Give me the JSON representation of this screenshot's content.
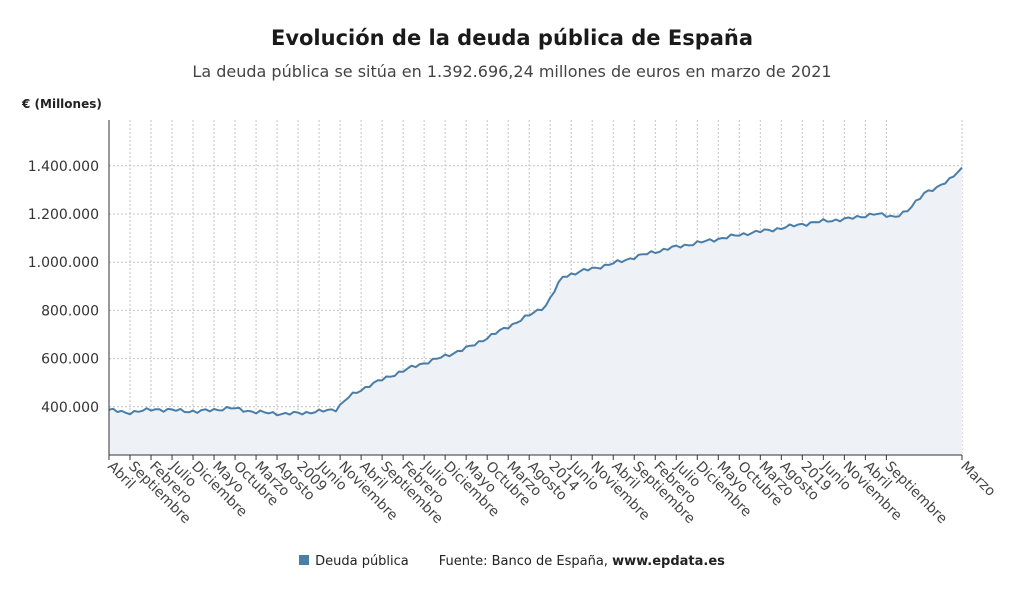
{
  "chart_data": {
    "type": "area",
    "title": "Evolución de la deuda pública de España",
    "subtitle": "La deuda pública se sitúa en 1.392.696,24 millones de euros en marzo de 2021",
    "ylabel": "€ (Millones)",
    "ylim": [
      200000,
      1590000
    ],
    "y_ticks": [
      "400.000",
      "600.000",
      "800.000",
      "1.000.000",
      "1.200.000",
      "1.400.000"
    ],
    "x_start": "Abril 2004",
    "x_end": "Marzo 2021",
    "x_tick_labels": [
      "Abril",
      "Septiembre",
      "Febrero",
      "Julio",
      "Diciembre",
      "Mayo",
      "Octubre",
      "Marzo",
      "Agosto",
      "2009",
      "Junio",
      "Noviembre",
      "Abril",
      "Septiembre",
      "Febrero",
      "Julio",
      "Diciembre",
      "Mayo",
      "Octubre",
      "Marzo",
      "Agosto",
      "2014",
      "Junio",
      "Noviembre",
      "Abril",
      "Septiembre",
      "Febrero",
      "Julio",
      "Diciembre",
      "Mayo",
      "Octubre",
      "Marzo",
      "Agosto",
      "2019",
      "Junio",
      "Noviembre",
      "Abril",
      "Septiembre",
      "Marzo"
    ],
    "x_tick_months": [
      0,
      5,
      10,
      15,
      20,
      25,
      30,
      35,
      40,
      45,
      50,
      55,
      60,
      65,
      70,
      75,
      80,
      85,
      90,
      95,
      100,
      105,
      110,
      115,
      120,
      125,
      130,
      135,
      140,
      145,
      150,
      155,
      160,
      165,
      170,
      175,
      180,
      185,
      203
    ],
    "grid": true,
    "legend_position": "bottom",
    "series": [
      {
        "name": "Deuda pública",
        "color": "#4a7ea8",
        "anchors": [
          [
            "2004-04",
            388000
          ],
          [
            "2004-08",
            375000
          ],
          [
            "2005-03",
            390000
          ],
          [
            "2006-01",
            380000
          ],
          [
            "2006-09",
            395000
          ],
          [
            "2007-03",
            378000
          ],
          [
            "2007-10",
            370000
          ],
          [
            "2008-06",
            380000
          ],
          [
            "2008-10",
            390000
          ],
          [
            "2009-01",
            440000
          ],
          [
            "2009-06",
            490000
          ],
          [
            "2009-12",
            535000
          ],
          [
            "2010-05",
            570000
          ],
          [
            "2010-12",
            610000
          ],
          [
            "2011-06",
            650000
          ],
          [
            "2011-12",
            705000
          ],
          [
            "2012-06",
            760000
          ],
          [
            "2012-12",
            820000
          ],
          [
            "2013-04",
            940000
          ],
          [
            "2013-09",
            965000
          ],
          [
            "2014-03",
            990000
          ],
          [
            "2014-12",
            1035000
          ],
          [
            "2015-06",
            1060000
          ],
          [
            "2015-12",
            1080000
          ],
          [
            "2016-06",
            1100000
          ],
          [
            "2016-12",
            1120000
          ],
          [
            "2017-06",
            1135000
          ],
          [
            "2017-12",
            1155000
          ],
          [
            "2018-06",
            1170000
          ],
          [
            "2018-12",
            1180000
          ],
          [
            "2019-06",
            1200000
          ],
          [
            "2019-11",
            1190000
          ],
          [
            "2020-02",
            1210000
          ],
          [
            "2020-06",
            1290000
          ],
          [
            "2020-09",
            1305000
          ],
          [
            "2020-12",
            1345000
          ],
          [
            "2021-03",
            1392696.24
          ]
        ]
      }
    ],
    "source_label": "Fuente: Banco de España,",
    "source_site": "www.epdata.es"
  }
}
